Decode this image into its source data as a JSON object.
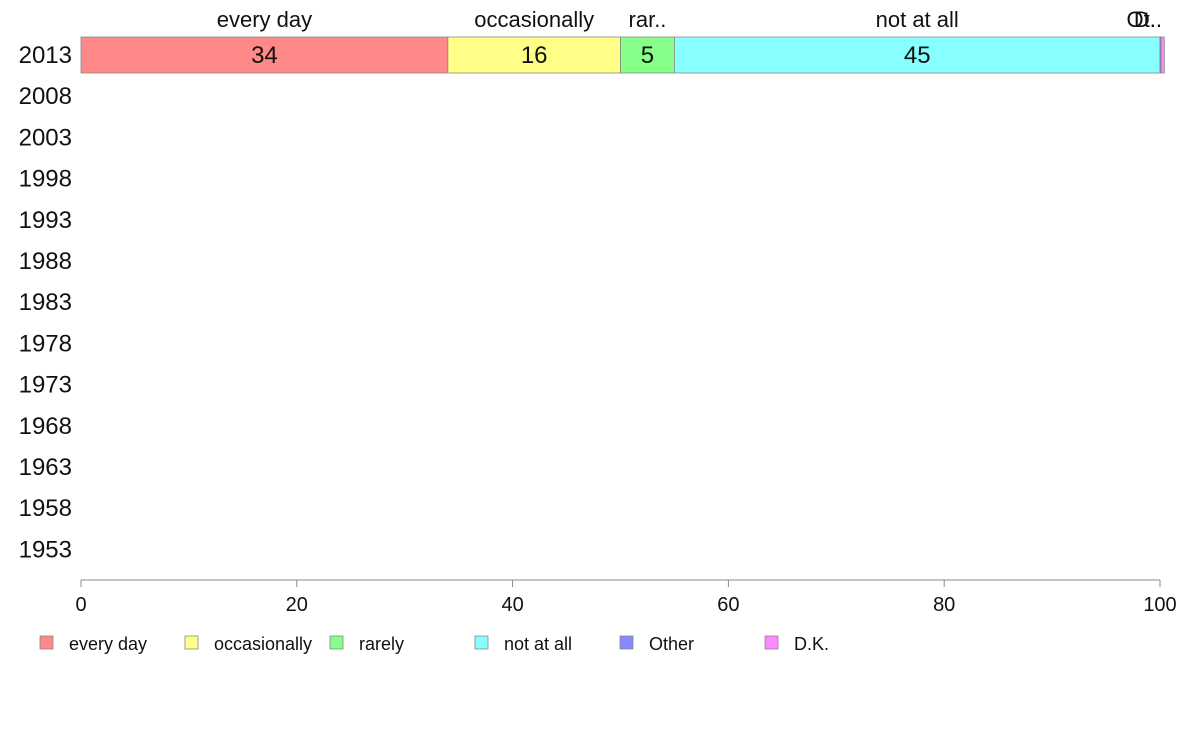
{
  "chart_data": {
    "type": "bar",
    "orientation": "horizontal",
    "stacked": true,
    "categories": [
      "2013",
      "2008",
      "2003",
      "1998",
      "1993",
      "1988",
      "1983",
      "1978",
      "1973",
      "1968",
      "1963",
      "1958",
      "1953"
    ],
    "series": [
      {
        "name": "every day",
        "top_label": "every day",
        "color": "#ff8888",
        "values": [
          34,
          null,
          null,
          null,
          null,
          null,
          null,
          null,
          null,
          null,
          null,
          null,
          null
        ]
      },
      {
        "name": "occasionally",
        "top_label": "occasionally",
        "color": "#ffff88",
        "values": [
          16,
          null,
          null,
          null,
          null,
          null,
          null,
          null,
          null,
          null,
          null,
          null,
          null
        ]
      },
      {
        "name": "rarely",
        "top_label": "rar..",
        "color": "#88ff88",
        "values": [
          5,
          null,
          null,
          null,
          null,
          null,
          null,
          null,
          null,
          null,
          null,
          null,
          null
        ]
      },
      {
        "name": "not at all",
        "top_label": "not at all",
        "color": "#88ffff",
        "values": [
          45,
          null,
          null,
          null,
          null,
          null,
          null,
          null,
          null,
          null,
          null,
          null,
          null
        ]
      },
      {
        "name": "Other",
        "top_label": "Ot..",
        "color": "#8888ff",
        "values": [
          0.1,
          null,
          null,
          null,
          null,
          null,
          null,
          null,
          null,
          null,
          null,
          null,
          null
        ]
      },
      {
        "name": "D.K.",
        "top_label": "D..",
        "color": "#ff88ff",
        "values": [
          0.3,
          null,
          null,
          null,
          null,
          null,
          null,
          null,
          null,
          null,
          null,
          null,
          null
        ]
      }
    ],
    "data_labels": [
      [
        "34",
        "16",
        "5",
        "45",
        "",
        ""
      ]
    ],
    "xlim": [
      0,
      100
    ],
    "xticks": [
      "0",
      "20",
      "40",
      "60",
      "80",
      "100"
    ],
    "title": "",
    "xlabel": "",
    "ylabel": "",
    "grid": false,
    "legend_position": "bottom"
  }
}
